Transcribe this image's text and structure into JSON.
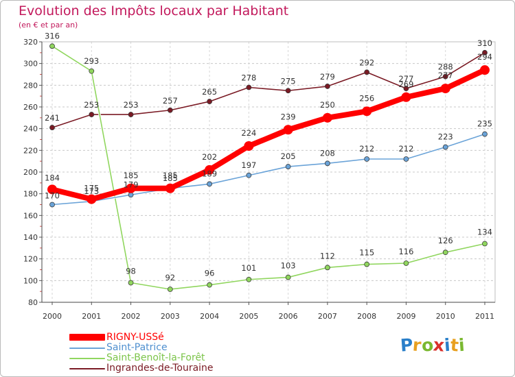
{
  "header": {
    "title": "Evolution des Impôts locaux par Habitant",
    "subtitle": "(en € et par an)"
  },
  "logo": {
    "letters": [
      "P",
      "r",
      "o",
      "x",
      "i",
      "t",
      "i"
    ],
    "colors": [
      "#2a7fc9",
      "#e8a020",
      "#7ab830",
      "#d9302b",
      "#2a7fc9",
      "#e8a020",
      "#7ab830"
    ]
  },
  "chart_data": {
    "type": "line",
    "title": "Evolution des Impôts locaux par Habitant",
    "subtitle": "(en € et par an)",
    "xlabel": "",
    "ylabel": "",
    "x": [
      "2000",
      "2001",
      "2002",
      "2003",
      "2004",
      "2005",
      "2006",
      "2007",
      "2008",
      "2009",
      "2010",
      "2011"
    ],
    "ylim": [
      80,
      320
    ],
    "yticks": [
      80,
      100,
      120,
      140,
      160,
      180,
      200,
      220,
      240,
      260,
      280,
      300,
      320
    ],
    "grid": "horizontal dashed",
    "legend_position": "bottom-left",
    "series": [
      {
        "name": "Ingrandes-de-Touraine",
        "color": "#7a1a24",
        "values": [
          241,
          253,
          253,
          257,
          265,
          278,
          275,
          279,
          292,
          277,
          288,
          310
        ]
      },
      {
        "name": "Saint-Benoît-la-Forêt",
        "color": "#90d65e",
        "values": [
          316,
          293,
          98,
          92,
          96,
          101,
          103,
          112,
          115,
          116,
          126,
          134
        ]
      },
      {
        "name": "Saint-Patrice",
        "color": "#6aa3d8",
        "values": [
          170,
          173,
          179,
          185,
          189,
          197,
          205,
          208,
          212,
          212,
          223,
          235
        ]
      },
      {
        "name": "RIGNY-USSé",
        "color": "#ff0000",
        "values": [
          184,
          175,
          185,
          185,
          202,
          224,
          239,
          250,
          256,
          269,
          277,
          294
        ]
      }
    ],
    "legend_order": [
      "RIGNY-USSé",
      "Saint-Patrice",
      "Saint-Benoît-la-Forêt",
      "Ingrandes-de-Touraine"
    ]
  }
}
